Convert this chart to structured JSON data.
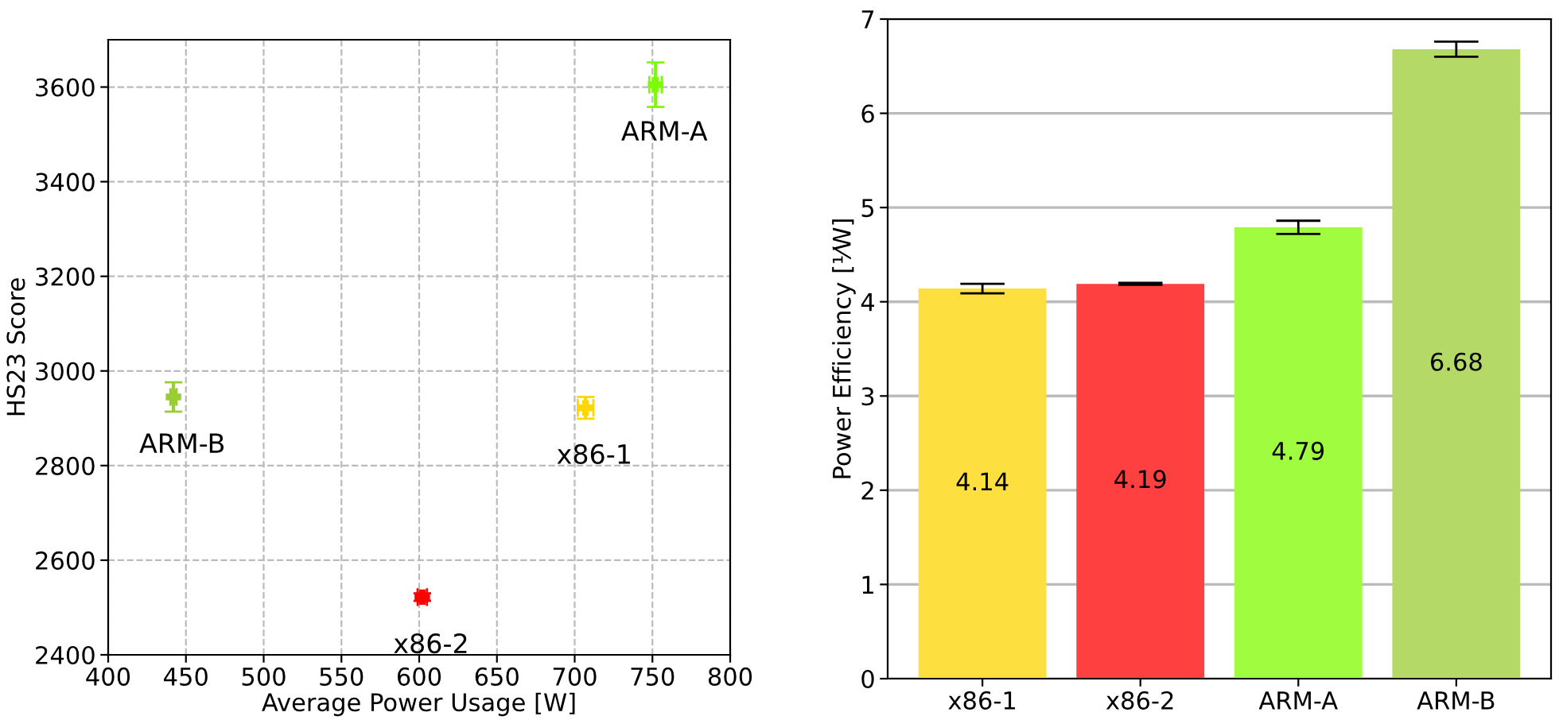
{
  "chart_data": [
    {
      "type": "scatter",
      "xlabel": "Average Power Usage [W]",
      "ylabel": "HS23 Score",
      "series": [
        {
          "x": [
            707,
            602,
            752,
            442
          ],
          "values": [
            2922,
            2522,
            3605,
            2945
          ],
          "colors": [
            "#ffd700",
            "#ff0000",
            "#7cfc00",
            "#9acd32"
          ],
          "xerrors": [
            5,
            3,
            4,
            2
          ],
          "errors": [
            23,
            8,
            47,
            31
          ]
        }
      ],
      "annotations": [
        {
          "text": "x86-1",
          "x": 707,
          "y": 2922
        },
        {
          "text": "x86-2",
          "x": 602,
          "y": 2522
        },
        {
          "text": "ARM-A",
          "x": 752,
          "y": 3605
        },
        {
          "text": "ARM-B",
          "x": 442,
          "y": 2945
        }
      ],
      "marker": "cross",
      "grid": true,
      "line_style": "dashed",
      "xlim": [
        400,
        800
      ],
      "xticks": [
        400,
        450,
        500,
        550,
        600,
        650,
        700,
        750,
        800
      ],
      "ylim": [
        2400,
        3700
      ],
      "yticks": [
        2400,
        2600,
        2800,
        3000,
        3200,
        3400,
        3600
      ]
    },
    {
      "type": "bar",
      "ylabel": "Power Efficiency [¹⁄W]",
      "categories": [
        "x86-1",
        "x86-2",
        "ARM-A",
        "ARM-B"
      ],
      "values": [
        4.14,
        4.19,
        4.79,
        6.68
      ],
      "colors": [
        "#fde03f",
        "#ff4040",
        "#9ffc3f",
        "#b4d966"
      ],
      "errors": [
        0.05,
        0.01,
        0.07,
        0.08
      ],
      "data_labels": true,
      "grid": "y",
      "ylim": [
        0,
        7
      ],
      "yticks": [
        0,
        1,
        2,
        3,
        4,
        5,
        6,
        7
      ]
    }
  ]
}
